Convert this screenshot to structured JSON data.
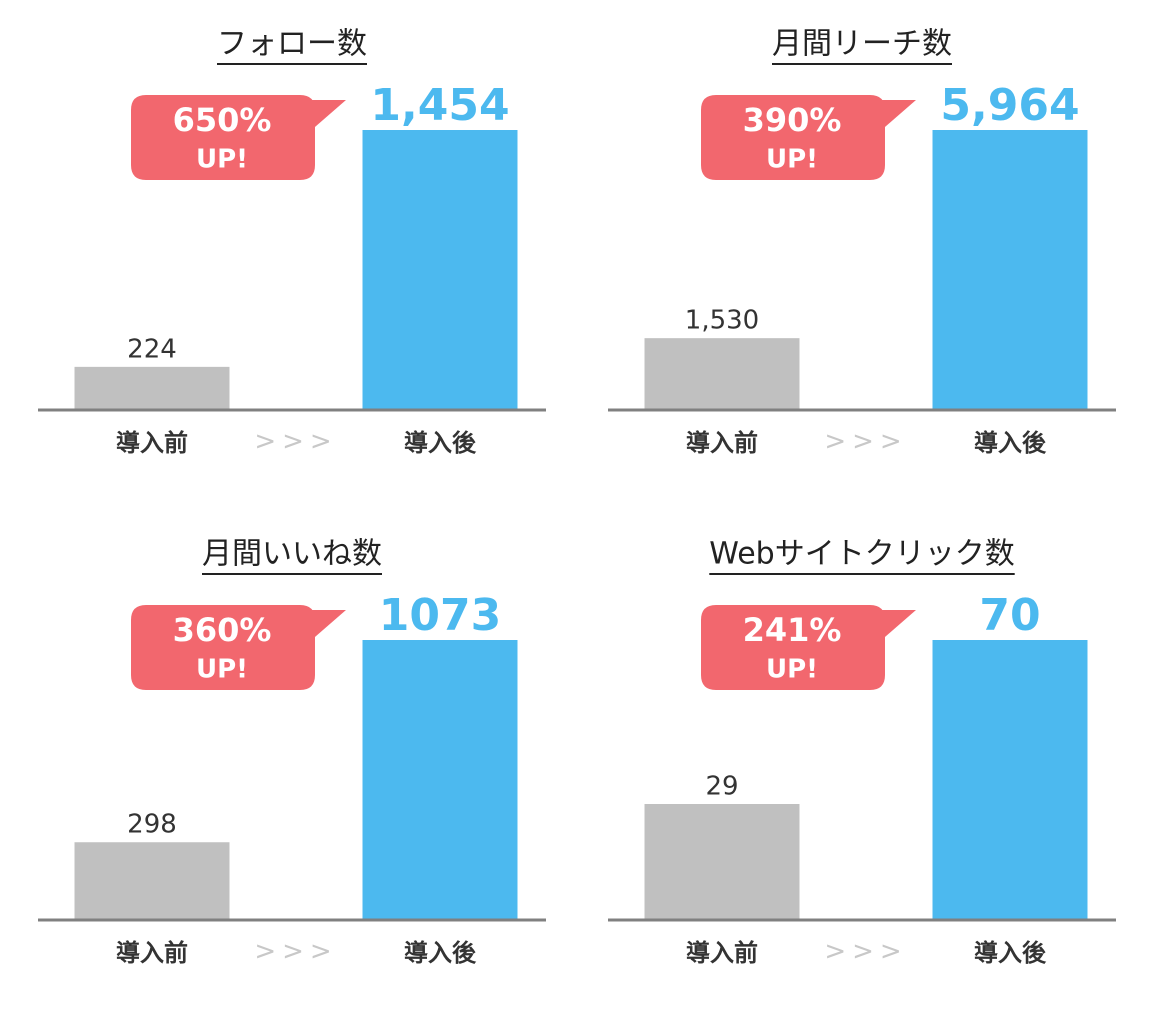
{
  "chart_data": [
    {
      "type": "bar",
      "title": "フォロー数",
      "categories": [
        "導入前",
        "導入後"
      ],
      "separator": ">>>",
      "values": [
        224,
        1454
      ],
      "value_labels": [
        "224",
        "1,454"
      ],
      "colors": [
        "#c0c0c0",
        "#4cb9ef"
      ],
      "callout": "650%",
      "callout_sub": "UP!",
      "callout_color": "#f2676e"
    },
    {
      "type": "bar",
      "title": "月間リーチ数",
      "categories": [
        "導入前",
        "導入後"
      ],
      "separator": ">>>",
      "values": [
        1530,
        5964
      ],
      "value_labels": [
        "1,530",
        "5,964"
      ],
      "colors": [
        "#c0c0c0",
        "#4cb9ef"
      ],
      "callout": "390%",
      "callout_sub": "UP!",
      "callout_color": "#f2676e"
    },
    {
      "type": "bar",
      "title": "月間いいね数",
      "categories": [
        "導入前",
        "導入後"
      ],
      "separator": ">>>",
      "values": [
        298,
        1073
      ],
      "value_labels": [
        "298",
        "1073"
      ],
      "colors": [
        "#c0c0c0",
        "#4cb9ef"
      ],
      "callout": "360%",
      "callout_sub": "UP!",
      "callout_color": "#f2676e"
    },
    {
      "type": "bar",
      "title": "Webサイトクリック数",
      "categories": [
        "導入前",
        "導入後"
      ],
      "separator": ">>>",
      "values": [
        29,
        70
      ],
      "value_labels": [
        "29",
        "70"
      ],
      "colors": [
        "#c0c0c0",
        "#4cb9ef"
      ],
      "callout": "241%",
      "callout_sub": "UP!",
      "callout_color": "#f2676e"
    }
  ]
}
